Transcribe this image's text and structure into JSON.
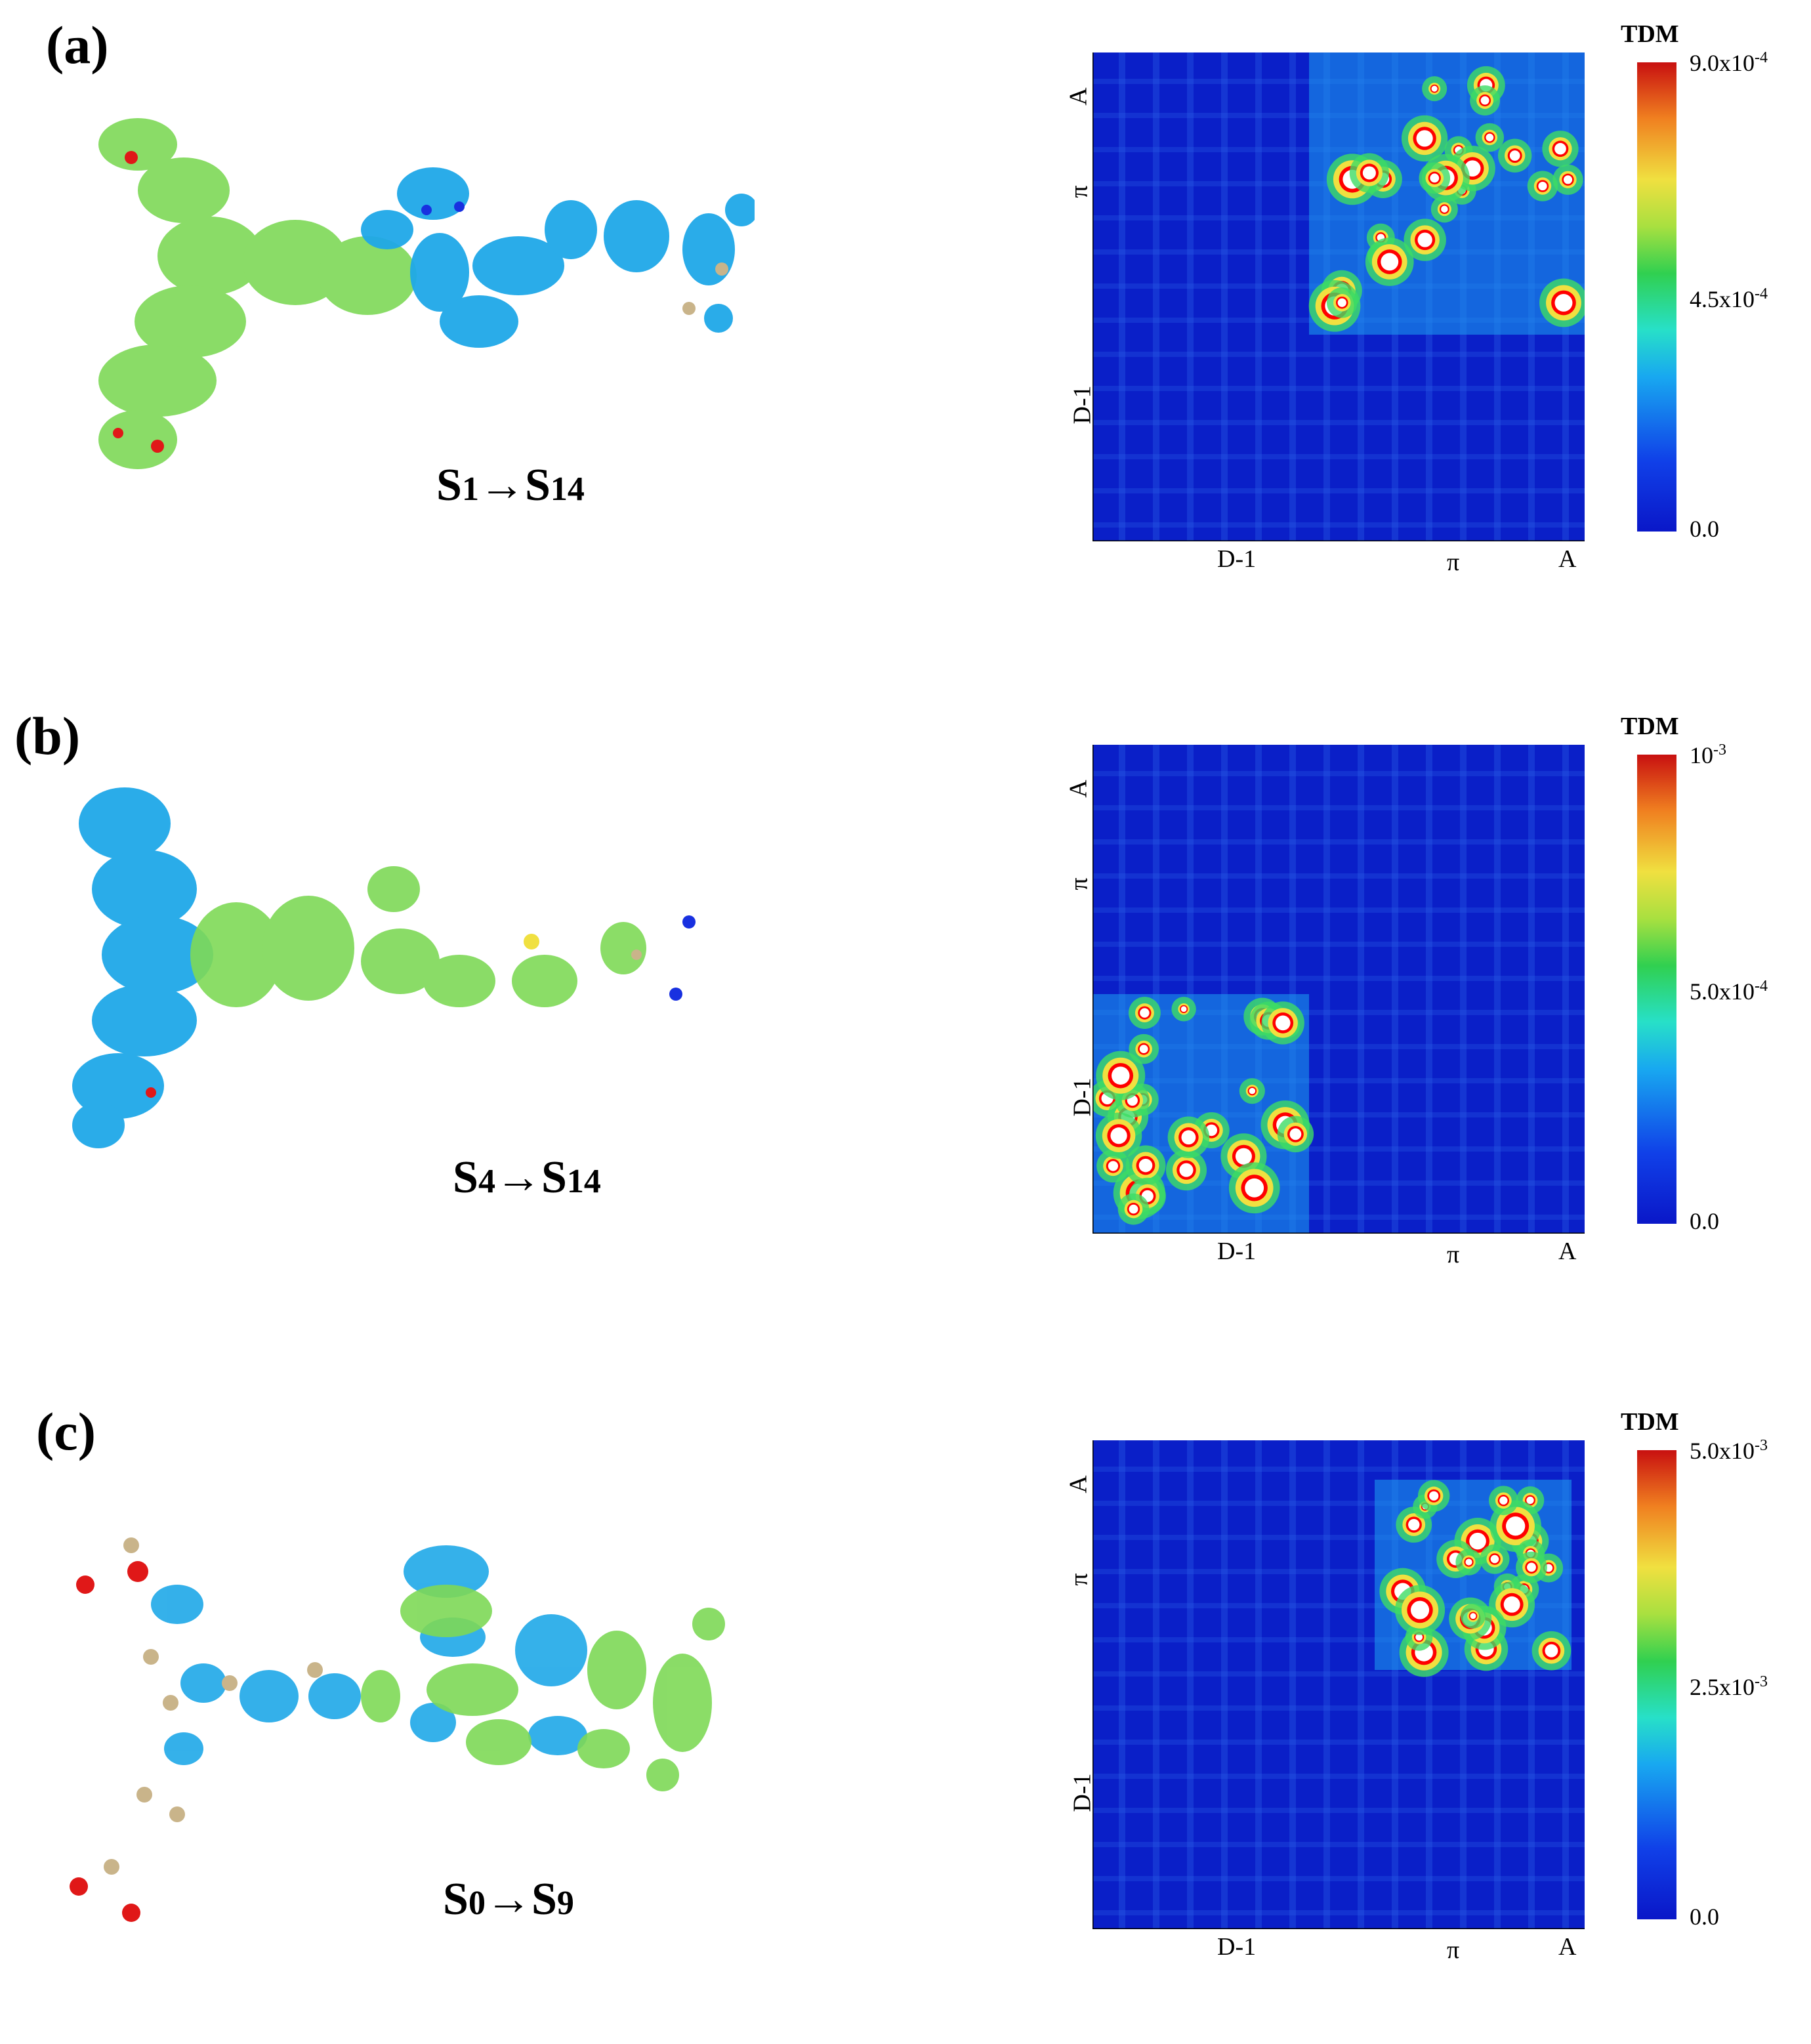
{
  "panels": [
    {
      "label": "(a)",
      "transition": {
        "from": "S",
        "from_sub": "1",
        "arrow": "→",
        "to": "S",
        "to_sub": "14"
      },
      "tdm_axes": {
        "x_labels": [
          "D-1",
          "π",
          "A"
        ],
        "y_labels": [
          "A",
          "π",
          "D-1"
        ]
      },
      "colorbar": {
        "title": "TDM",
        "max_mantissa": "9.0x10",
        "max_exp": "-4",
        "mid_mantissa": "4.5x10",
        "mid_exp": "-4",
        "min": "0.0"
      },
      "hot_region": "top-right",
      "spot_color": "#ff0000"
    },
    {
      "label": "(b)",
      "transition": {
        "from": "S",
        "from_sub": "4",
        "arrow": "→",
        "to": "S",
        "to_sub": "14"
      },
      "tdm_axes": {
        "x_labels": [
          "D-1",
          "π",
          "A"
        ],
        "y_labels": [
          "A",
          "π",
          "D-1"
        ]
      },
      "colorbar": {
        "title": "TDM",
        "max_mantissa": "10",
        "max_exp": "-3",
        "mid_mantissa": "5.0x10",
        "mid_exp": "-4",
        "min": "0.0"
      },
      "hot_region": "bottom-left",
      "spot_color": "#ff0000"
    },
    {
      "label": "(c)",
      "transition": {
        "from": "S",
        "from_sub": "0",
        "arrow": "→",
        "to": "S",
        "to_sub": "9"
      },
      "tdm_axes": {
        "x_labels": [
          "D-1",
          "π",
          "A"
        ],
        "y_labels": [
          "A",
          "π",
          "D-1"
        ]
      },
      "colorbar": {
        "title": "TDM",
        "max_mantissa": "5.0x10",
        "max_exp": "-3",
        "mid_mantissa": "2.5x10",
        "mid_exp": "-3",
        "min": "0.0"
      },
      "hot_region": "center-right",
      "spot_color": "#ff0000"
    }
  ],
  "colors": {
    "map_background": "#0a1fc8",
    "orbital_green": "#7ed957",
    "orbital_blue": "#1fa8e8",
    "atom_carbon": "#c9b48a",
    "atom_oxygen": "#e01818",
    "atom_nitrogen": "#1830e0",
    "atom_hydrogen": "#f2f2f2"
  }
}
